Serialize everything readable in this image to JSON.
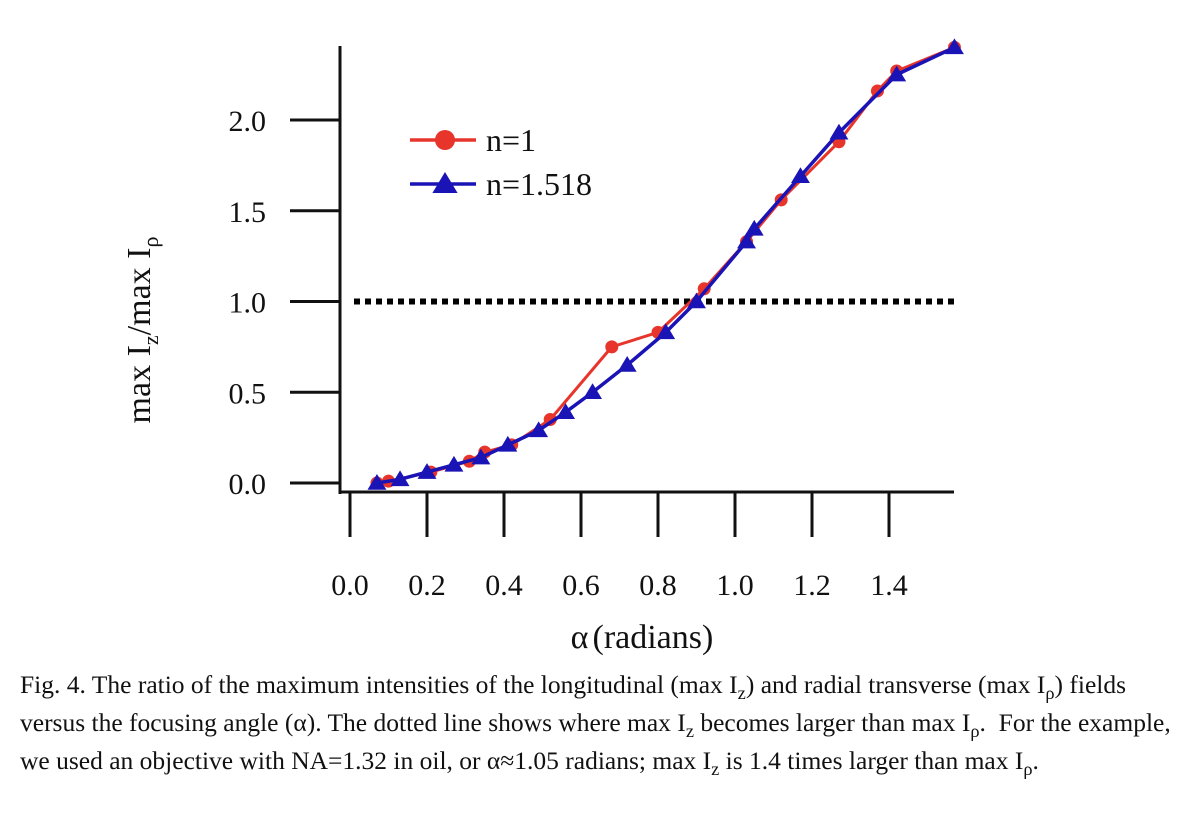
{
  "chart_data": {
    "type": "line",
    "xlabel_symbol": "α",
    "xlabel_text": "(radians)",
    "ylabel_parts": [
      "max I",
      "z",
      "/max I",
      "ρ"
    ],
    "xlim": [
      0.0,
      1.57
    ],
    "ylim": [
      0.0,
      2.4
    ],
    "xticks": [
      0.0,
      0.2,
      0.4,
      0.6,
      0.8,
      1.0,
      1.2,
      1.4
    ],
    "xtick_labels": [
      "0.0",
      "0.2",
      "0.4",
      "0.6",
      "0.8",
      "1.0",
      "1.2",
      "1.4"
    ],
    "yticks": [
      0.0,
      0.5,
      1.0,
      1.5,
      2.0
    ],
    "ytick_labels": [
      "0.0",
      "0.5",
      "1.0",
      "1.5",
      "2.0"
    ],
    "reference_line": {
      "y": 1.0,
      "style": "dotted"
    },
    "legend_position": "top-left",
    "series": [
      {
        "name": "n=1",
        "color": "#e8352b",
        "marker": "circle",
        "x": [
          0.07,
          0.1,
          0.21,
          0.31,
          0.35,
          0.42,
          0.52,
          0.68,
          0.8,
          0.92,
          1.03,
          1.12,
          1.27,
          1.37,
          1.42,
          1.57
        ],
        "y": [
          0.0,
          0.01,
          0.06,
          0.12,
          0.17,
          0.21,
          0.35,
          0.75,
          0.83,
          1.07,
          1.33,
          1.56,
          1.88,
          2.16,
          2.27,
          2.4
        ]
      },
      {
        "name": "n=1.518",
        "color": "#1a13b5",
        "marker": "triangle",
        "x": [
          0.07,
          0.13,
          0.2,
          0.27,
          0.34,
          0.41,
          0.49,
          0.56,
          0.63,
          0.72,
          0.82,
          0.9,
          1.03,
          1.05,
          1.17,
          1.27,
          1.42,
          1.57
        ],
        "y": [
          0.0,
          0.02,
          0.06,
          0.1,
          0.14,
          0.21,
          0.29,
          0.39,
          0.5,
          0.65,
          0.83,
          1.0,
          1.33,
          1.4,
          1.69,
          1.93,
          2.25,
          2.4
        ]
      }
    ]
  },
  "caption": {
    "p1": "Fig. 4. The ratio of the maximum intensities of the longitudinal (max I",
    "s1": "z",
    "p2": ") and radial transverse (max I",
    "s2": "ρ",
    "p3": ") fields versus the focusing angle (α). The dotted line shows where max I",
    "s3": "z",
    "p4": " becomes larger than max I",
    "s4": "ρ",
    "p5": ".  For the example, we used an objective with NA=1.32 in oil, or α≈1.05 radians; max I",
    "s5": "z",
    "p6": " is 1.4 times larger than max I",
    "s6": "ρ",
    "p7": "."
  }
}
